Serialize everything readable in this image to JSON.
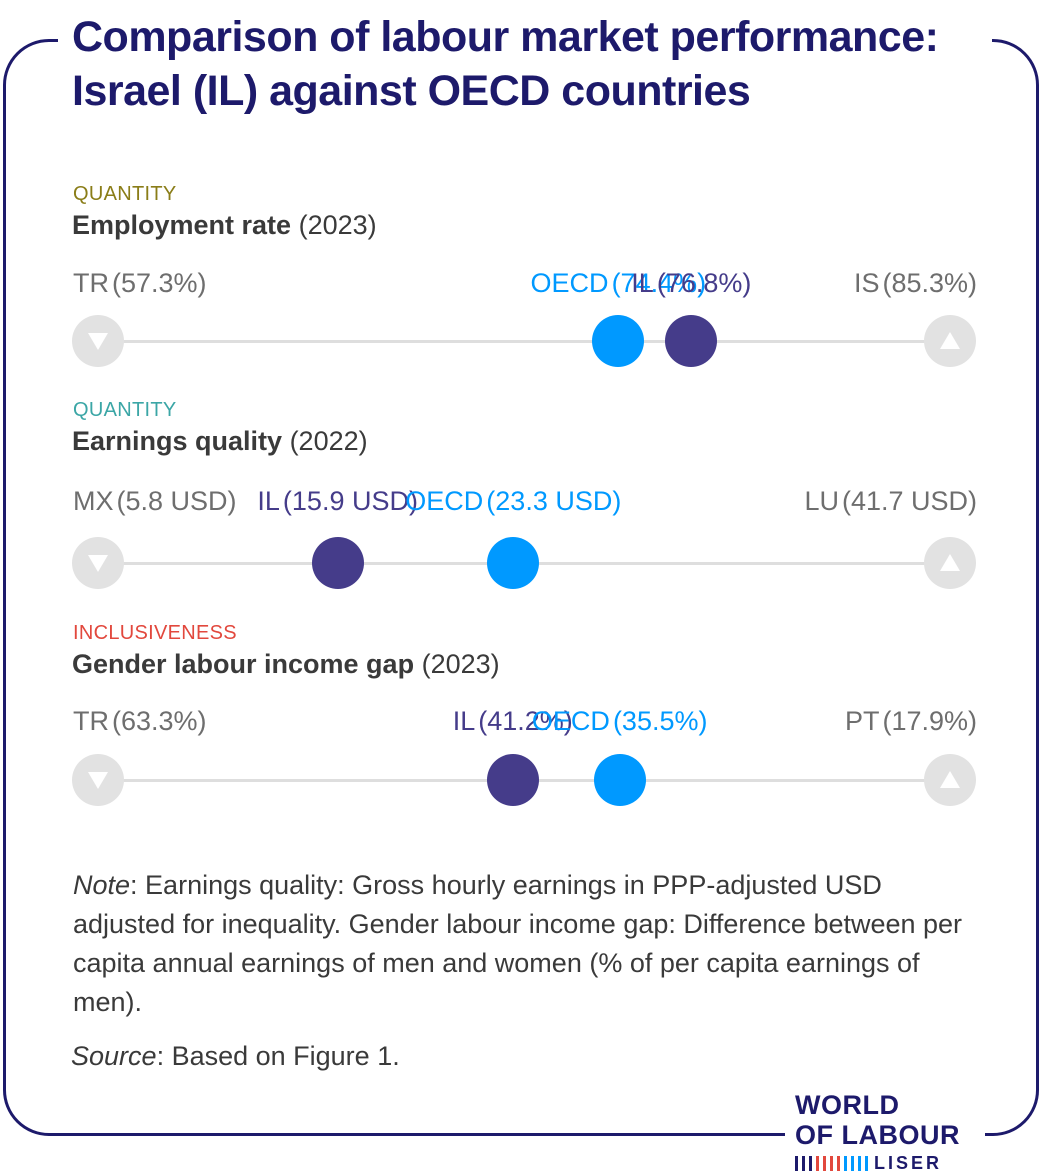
{
  "title": "Comparison of labour market performance: Israel (IL) against OECD countries",
  "colors": {
    "frame": "#1d1a6b",
    "oecd": "#0099ff",
    "il": "#453c8a",
    "end_label": "#6e6e6e",
    "track": "#dedede",
    "end_cap": "#e2e2e2"
  },
  "chart_data": [
    {
      "type": "scatter",
      "category": "QUANTITY",
      "category_color": "#8a7d18",
      "title": "Employment rate",
      "year": "(2023)",
      "scale_direction": "ascending",
      "points": [
        {
          "role": "min",
          "code": "TR",
          "label": "(57.3%)",
          "value": 57.3
        },
        {
          "role": "oecd",
          "code": "OECD",
          "label": "(74.4%)",
          "value": 74.4
        },
        {
          "role": "il",
          "code": "IL",
          "label": "(76.8%)",
          "value": 76.8
        },
        {
          "role": "max",
          "code": "IS",
          "label": "(85.3%)",
          "value": 85.3
        }
      ]
    },
    {
      "type": "scatter",
      "category": "QUANTITY",
      "category_color": "#3ba6a6",
      "title": "Earnings quality",
      "year": "(2022)",
      "scale_direction": "ascending",
      "points": [
        {
          "role": "min",
          "code": "MX",
          "label": "(5.8 USD)",
          "value": 5.8
        },
        {
          "role": "il",
          "code": "IL",
          "label": "(15.9 USD)",
          "value": 15.9
        },
        {
          "role": "oecd",
          "code": "OECD",
          "label": "(23.3 USD)",
          "value": 23.3
        },
        {
          "role": "max",
          "code": "LU",
          "label": "(41.7 USD)",
          "value": 41.7
        }
      ]
    },
    {
      "type": "scatter",
      "category": "INCLUSIVENESS",
      "category_color": "#e2483d",
      "title": "Gender labour income gap",
      "year": "(2023)",
      "scale_direction": "descending",
      "points": [
        {
          "role": "min",
          "code": "TR",
          "label": "(63.3%)",
          "value": 63.3
        },
        {
          "role": "il",
          "code": "IL",
          "label": "(41.2%)",
          "value": 41.2
        },
        {
          "role": "oecd",
          "code": "OECD",
          "label": "(35.5%)",
          "value": 35.5
        },
        {
          "role": "max",
          "code": "PT",
          "label": "(17.9%)",
          "value": 17.9
        }
      ]
    }
  ],
  "note": {
    "label": "Note",
    "text": ": Earnings quality: Gross hourly earnings in PPP-adjusted USD adjusted for inequality. Gender labour income gap: Difference between per capita annual earnings of men and women (% of per capita earnings of men)."
  },
  "source": {
    "label": "Source",
    "text": ": Based on Figure 1."
  },
  "logo": {
    "line1": "WORLD",
    "line2": "OF LABOUR",
    "line3": "LISER",
    "bar_colors": [
      "#1d1a6b",
      "#1d1a6b",
      "#1d1a6b",
      "#e2483d",
      "#e2483d",
      "#e2483d",
      "#e2483d",
      "#0099ff",
      "#0099ff",
      "#0099ff",
      "#0099ff"
    ]
  }
}
